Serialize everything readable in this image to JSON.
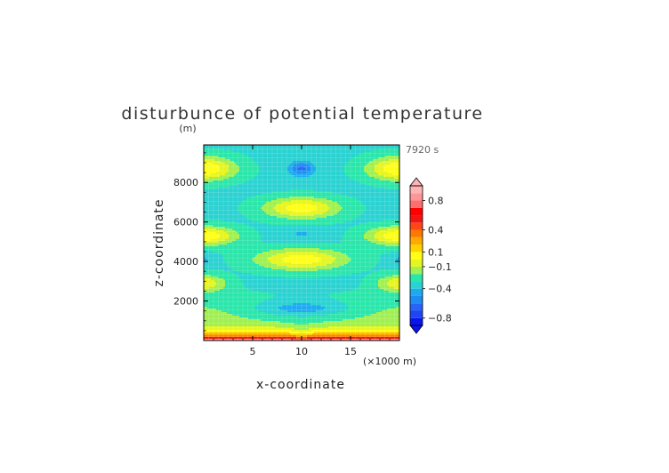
{
  "chart_data": {
    "type": "heatmap",
    "title": "disturbunce of potential temperature",
    "ylabel": "z-coordinate",
    "yunit": "(m)",
    "xlabel": "x-coordinate",
    "xunit": "(×1000 m)",
    "time_label": "7920 s",
    "xlim": [
      0,
      20
    ],
    "ylim": [
      0,
      9900
    ],
    "xticks": [
      {
        "value": 5,
        "label": "5"
      },
      {
        "value": 10,
        "label": "10"
      },
      {
        "value": 15,
        "label": "15"
      }
    ],
    "yticks": [
      {
        "value": 2000,
        "label": "2000"
      },
      {
        "value": 4000,
        "label": "4000"
      },
      {
        "value": 6000,
        "label": "6000"
      },
      {
        "value": 8000,
        "label": "8000"
      }
    ],
    "colorbar": {
      "levels": [
        {
          "lo": -0.9,
          "hi": -0.8,
          "color": "#0a14f0"
        },
        {
          "lo": -0.8,
          "hi": -0.7,
          "color": "#1e46f5"
        },
        {
          "lo": -0.7,
          "hi": -0.6,
          "color": "#2864f5"
        },
        {
          "lo": -0.6,
          "hi": -0.5,
          "color": "#1e8cf0"
        },
        {
          "lo": -0.5,
          "hi": -0.4,
          "color": "#1eaaf0"
        },
        {
          "lo": -0.4,
          "hi": -0.3,
          "color": "#2ad2d2"
        },
        {
          "lo": -0.3,
          "hi": -0.2,
          "color": "#2ae6aa"
        },
        {
          "lo": -0.2,
          "hi": -0.1,
          "color": "#a0f050"
        },
        {
          "lo": -0.1,
          "hi": 0.0,
          "color": "#e6f51e"
        },
        {
          "lo": 0.0,
          "hi": 0.1,
          "color": "#ffff14"
        },
        {
          "lo": 0.1,
          "hi": 0.2,
          "color": "#ffd200"
        },
        {
          "lo": 0.2,
          "hi": 0.3,
          "color": "#ffaa00"
        },
        {
          "lo": 0.3,
          "hi": 0.4,
          "color": "#ff7800"
        },
        {
          "lo": 0.4,
          "hi": 0.5,
          "color": "#ff4614"
        },
        {
          "lo": 0.5,
          "hi": 0.6,
          "color": "#f01414"
        },
        {
          "lo": 0.6,
          "hi": 0.7,
          "color": "#ff0000"
        },
        {
          "lo": 0.7,
          "hi": 0.8,
          "color": "#ff6e6e"
        },
        {
          "lo": 0.8,
          "hi": 0.9,
          "color": "#ff9696"
        },
        {
          "lo": 0.9,
          "hi": 1.0,
          "color": "#ffb4b4"
        }
      ],
      "labels": [
        {
          "value": 0.8,
          "label": "0.8"
        },
        {
          "value": 0.4,
          "label": "0.4"
        },
        {
          "value": 0.1,
          "label": "0.1"
        },
        {
          "value": -0.1,
          "label": "−0.1"
        },
        {
          "value": -0.4,
          "label": "−0.4"
        },
        {
          "value": -0.8,
          "label": "−0.8"
        }
      ],
      "overflow_high_color": "#ffb4b4",
      "underflow_low_color": "#0a14f0"
    }
  }
}
